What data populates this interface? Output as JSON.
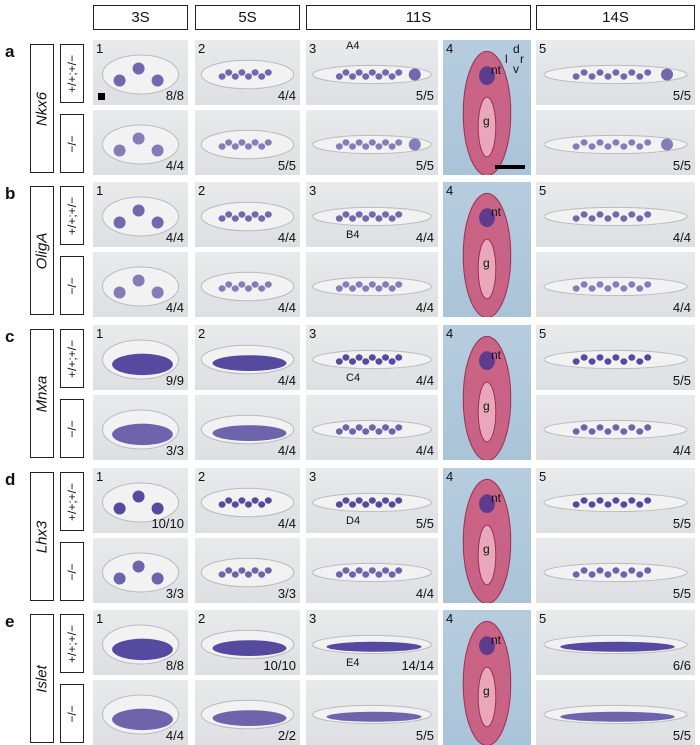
{
  "stages": [
    "3S",
    "5S",
    "11S",
    "14S"
  ],
  "genotypes": {
    "het": "+/+;+/−",
    "mut": "−/−"
  },
  "rows": [
    {
      "letter": "a",
      "gene": "Nkx6",
      "het": [
        "8/8",
        "4/4",
        "5/5",
        "5/5"
      ],
      "mut": [
        "4/4",
        "5/5",
        "5/5",
        "5/5"
      ]
    },
    {
      "letter": "b",
      "gene": "OligA",
      "het": [
        "4/4",
        "4/4",
        "4/4",
        "4/4"
      ],
      "mut": [
        "4/4",
        "4/4",
        "4/4",
        "4/4"
      ]
    },
    {
      "letter": "c",
      "gene": "Mnxa",
      "het": [
        "9/9",
        "4/4",
        "4/4",
        "5/5"
      ],
      "mut": [
        "3/3",
        "4/4",
        "4/4",
        "4/4"
      ]
    },
    {
      "letter": "d",
      "gene": "Lhx3",
      "het": [
        "10/10",
        "4/4",
        "5/5",
        "5/5"
      ],
      "mut": [
        "3/3",
        "3/3",
        "4/4",
        "5/5"
      ]
    },
    {
      "letter": "e",
      "gene": "Islet",
      "het": [
        "8/8",
        "10/10",
        "14/14",
        "6/6"
      ],
      "mut": [
        "4/4",
        "2/2",
        "5/5",
        "5/5"
      ]
    }
  ],
  "panel_numbers": [
    "1",
    "2",
    "3",
    "4",
    "5"
  ],
  "section_labels": {
    "neural_tube": "nt",
    "gut": "g"
  },
  "section_callouts": [
    "A4",
    "B4",
    "C4",
    "D4",
    "E4"
  ],
  "orientation": {
    "dorsal": "d",
    "ventral": "v",
    "left": "l",
    "right": "r"
  },
  "colors": {
    "stain": "#3a2d8f",
    "embryo": "#f2f2f3",
    "background": "#dcdde0",
    "section_bg": "#aec7dc",
    "section_tissue": "#cf4a6f"
  }
}
